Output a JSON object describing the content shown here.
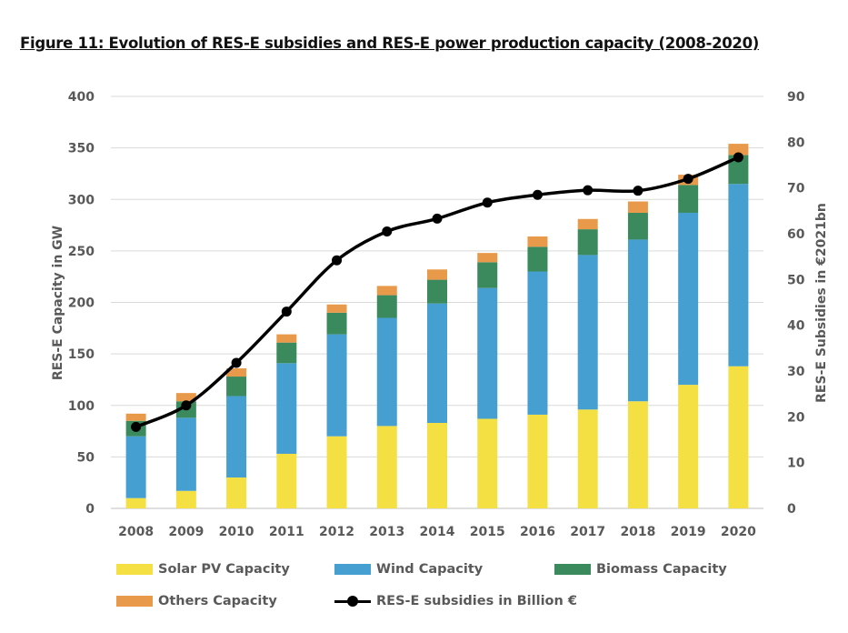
{
  "chart_data": {
    "type": "bar",
    "title": "Figure 11: Evolution of RES-E subsidies and RES-E power production capacity (2008-2020)",
    "categories": [
      "2008",
      "2009",
      "2010",
      "2011",
      "2012",
      "2013",
      "2014",
      "2015",
      "2016",
      "2017",
      "2018",
      "2019",
      "2020"
    ],
    "stacked": true,
    "series": [
      {
        "name": "Solar PV Capacity",
        "type": "bar",
        "axis": "left",
        "color": "#f5e044",
        "values": [
          10,
          17,
          30,
          53,
          70,
          80,
          83,
          87,
          91,
          96,
          104,
          120,
          138
        ]
      },
      {
        "name": "Wind Capacity",
        "type": "bar",
        "axis": "left",
        "color": "#469fd1",
        "values": [
          60,
          71,
          79,
          88,
          99,
          105,
          116,
          127,
          139,
          150,
          157,
          167,
          177
        ]
      },
      {
        "name": "Biomass Capacity",
        "type": "bar",
        "axis": "left",
        "color": "#3b8a5e",
        "values": [
          15,
          16,
          19,
          20,
          21,
          22,
          23,
          25,
          24,
          25,
          26,
          27,
          28
        ]
      },
      {
        "name": "Others Capacity",
        "type": "bar",
        "axis": "left",
        "color": "#e9994a",
        "values": [
          7,
          8,
          8,
          8,
          8,
          9,
          10,
          9,
          10,
          10,
          11,
          10,
          11
        ]
      },
      {
        "name": "RES-E subsidies in Billion €",
        "type": "line",
        "axis": "right",
        "color": "#000000",
        "values": [
          17.8,
          22.5,
          31.8,
          43.0,
          54.2,
          60.5,
          63.3,
          66.8,
          68.5,
          69.5,
          69.4,
          72.0,
          76.7
        ]
      }
    ],
    "left_axis": {
      "label": "RES-E Capacity in GW",
      "min": 0,
      "max": 400,
      "ticks": [
        "0",
        "50",
        "100",
        "150",
        "200",
        "250",
        "300",
        "350",
        "400"
      ]
    },
    "right_axis": {
      "label": "RES-E Subsidies in €2021bn",
      "min": 0,
      "max": 90,
      "ticks": [
        "0",
        "10",
        "20",
        "30",
        "40",
        "50",
        "60",
        "70",
        "80",
        "90"
      ]
    },
    "grid": true,
    "legend_position": "bottom"
  }
}
